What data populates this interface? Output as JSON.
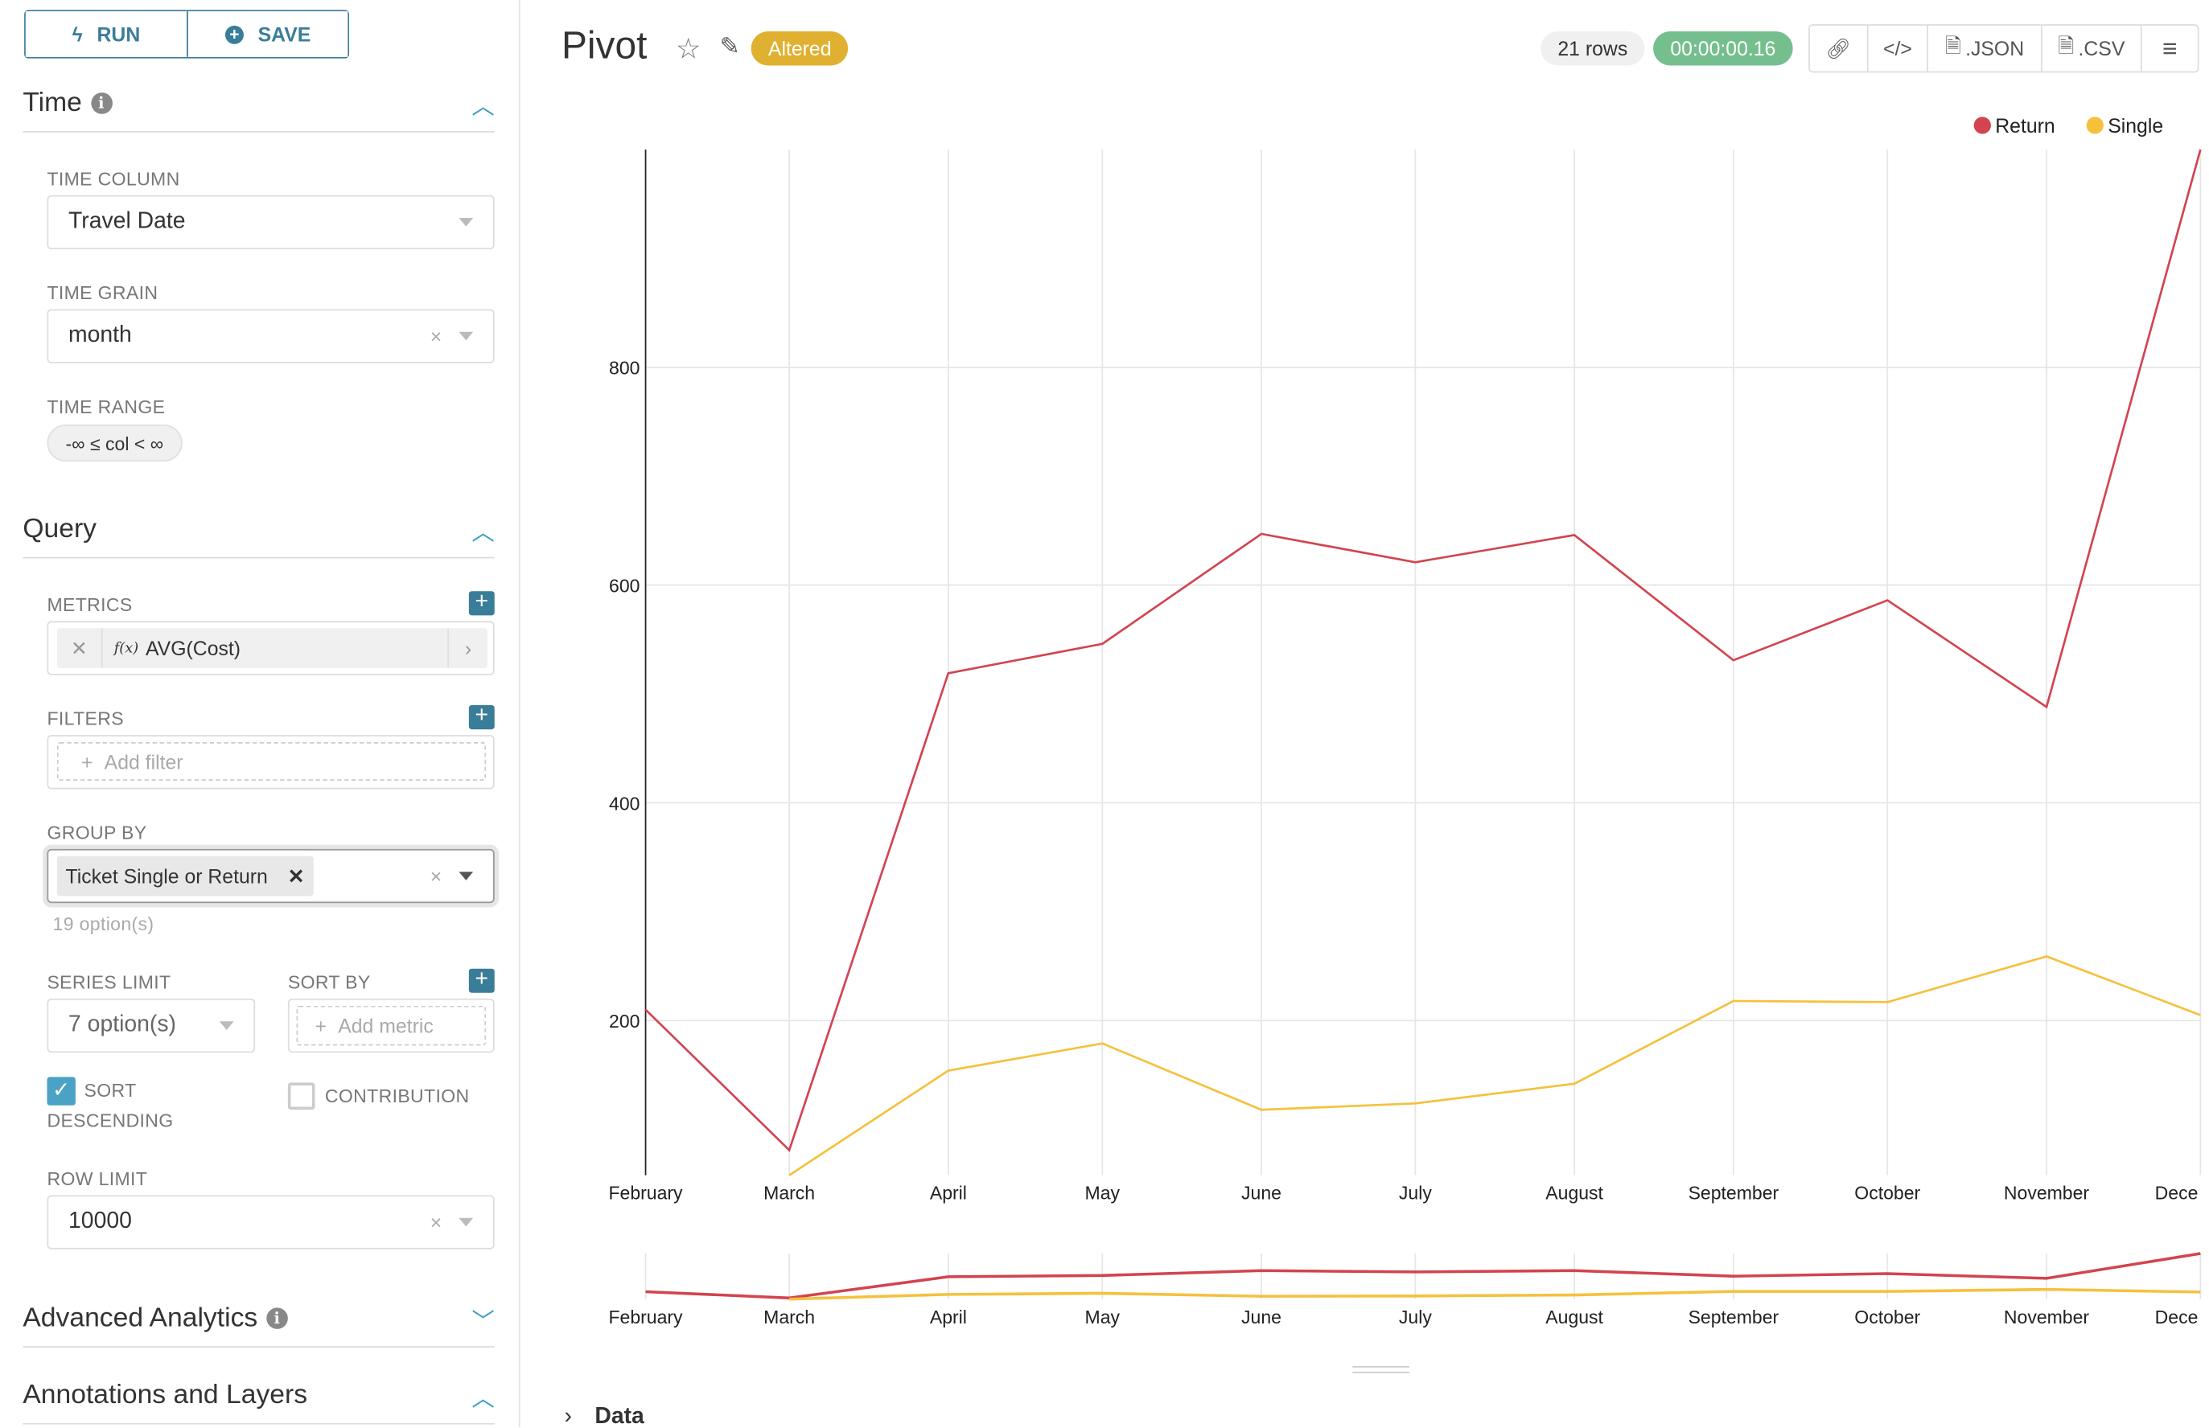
{
  "sidebar": {
    "run_label": "RUN",
    "save_label": "SAVE",
    "time": {
      "title": "Time",
      "time_column_label": "TIME COLUMN",
      "time_column_value": "Travel Date",
      "time_grain_label": "TIME GRAIN",
      "time_grain_value": "month",
      "time_range_label": "TIME RANGE",
      "time_range_value": "-∞ ≤ col < ∞"
    },
    "query": {
      "title": "Query",
      "metrics_label": "METRICS",
      "metric_value": "AVG(Cost)",
      "metric_fx": "f(x)",
      "filters_label": "FILTERS",
      "add_filter": "Add filter",
      "group_by_label": "GROUP BY",
      "group_by_tag": "Ticket Single or Return",
      "group_by_hint": "19 option(s)",
      "series_limit_label": "SERIES LIMIT",
      "series_limit_value": "7 option(s)",
      "sort_by_label": "SORT BY",
      "add_metric": "Add metric",
      "sort_desc_label": "SORT DESCENDING",
      "sort_desc_checked": true,
      "contribution_label": "CONTRIBUTION",
      "contribution_checked": false,
      "row_limit_label": "ROW LIMIT",
      "row_limit_value": "10000"
    },
    "advanced_title": "Advanced Analytics",
    "annotations_title": "Annotations and Layers"
  },
  "header": {
    "title": "Pivot",
    "altered": "Altered",
    "rows": "21 rows",
    "duration": "00:00:00.16",
    "json": ".JSON",
    "csv": ".CSV"
  },
  "data_section": "Data",
  "colors": {
    "accent": "#3a7d99",
    "return": "#d2444f",
    "single": "#f5c13c",
    "duration_bg": "#75bf8e",
    "altered_bg": "#e0b030"
  },
  "chart_data": {
    "type": "line",
    "categories": [
      "February",
      "March",
      "April",
      "May",
      "June",
      "July",
      "August",
      "September",
      "October",
      "November",
      "December"
    ],
    "tick_labels": [
      "February",
      "March",
      "April",
      "May",
      "June",
      "July",
      "August",
      "September",
      "October",
      "November",
      "Dece"
    ],
    "series": [
      {
        "name": "Return",
        "color": "#d2444f",
        "values": [
          210,
          81,
          519,
          546,
          647,
          621,
          646,
          531,
          586,
          488,
          1000
        ]
      },
      {
        "name": "Single",
        "color": "#f5c13c",
        "values": [
          null,
          58,
          154,
          179,
          118,
          124,
          142,
          218,
          217,
          259,
          205
        ]
      }
    ],
    "yticks": [
      200,
      400,
      600,
      800
    ],
    "ylim": [
      58,
      1000
    ],
    "grid": true,
    "legend": "top-right",
    "brush_overview": true
  }
}
